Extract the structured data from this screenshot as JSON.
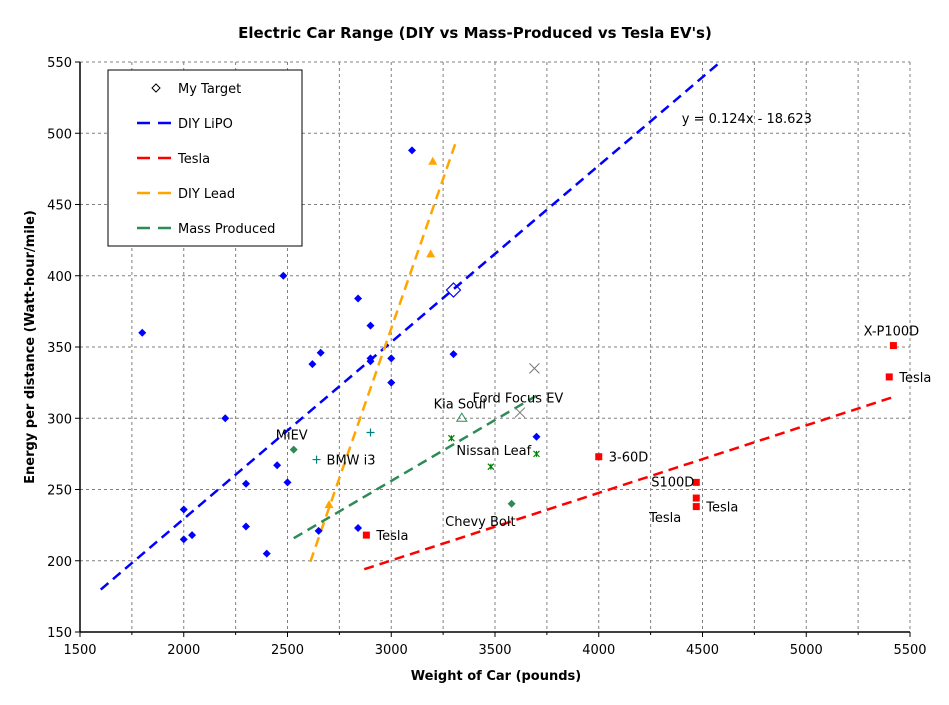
{
  "chart_data": {
    "type": "scatter",
    "title": "Electric Car Range (DIY vs Mass-Produced vs Tesla EV's)",
    "xlabel": "Weight of Car (pounds)",
    "ylabel": "Energy per distance (Watt-hour/mile)",
    "xlim": [
      1500,
      5500
    ],
    "ylim": [
      150,
      550
    ],
    "xticks": [
      1500,
      2000,
      2500,
      3000,
      3500,
      4000,
      4500,
      5000,
      5500
    ],
    "yticks": [
      150,
      200,
      250,
      300,
      350,
      400,
      450,
      500,
      550
    ],
    "grid": true,
    "legend": {
      "placement": "top-left",
      "entries": [
        {
          "label": "My Target",
          "symbol": "diamond-open",
          "color": "#000000"
        },
        {
          "label": "DIY LiPO",
          "symbol": "dashed-line",
          "color": "#0000ff"
        },
        {
          "label": "Tesla",
          "symbol": "dashed-line",
          "color": "#ff0000"
        },
        {
          "label": "DIY Lead",
          "symbol": "dashed-line",
          "color": "#ffa500"
        },
        {
          "label": "Mass Produced",
          "symbol": "dashed-line",
          "color": "#2e8b57"
        }
      ]
    },
    "series": [
      {
        "name": "DIY LiPO",
        "marker": "diamond",
        "color": "#0000ff",
        "points": [
          [
            1800,
            360
          ],
          [
            2200,
            300
          ],
          [
            2000,
            236
          ],
          [
            2000,
            215
          ],
          [
            2040,
            218
          ],
          [
            2300,
            224
          ],
          [
            2300,
            254
          ],
          [
            2400,
            205
          ],
          [
            2450,
            267
          ],
          [
            2500,
            255
          ],
          [
            2480,
            400
          ],
          [
            2620,
            338
          ],
          [
            2660,
            346
          ],
          [
            2650,
            221
          ],
          [
            2840,
            223
          ],
          [
            2840,
            384
          ],
          [
            2900,
            365
          ],
          [
            2900,
            340
          ],
          [
            2900,
            342
          ],
          [
            3000,
            342
          ],
          [
            3000,
            325
          ],
          [
            3100,
            488
          ],
          [
            3300,
            345
          ],
          [
            3700,
            287
          ]
        ]
      },
      {
        "name": "DIY Lead",
        "marker": "triangle",
        "color": "#ffa500",
        "points": [
          [
            3200,
            480
          ],
          [
            3190,
            415
          ],
          [
            2700,
            239
          ]
        ]
      },
      {
        "name": "My Target",
        "marker": "diamond-open",
        "color": "#0000ff",
        "points": [
          [
            3300,
            390
          ]
        ]
      },
      {
        "name": "Mass Produced",
        "marker": "mixed",
        "color": "#2e8b57",
        "points": [
          [
            2530,
            278,
            "diamond"
          ],
          [
            2640,
            271,
            "plus"
          ],
          [
            2900,
            290,
            "plus"
          ],
          [
            3340,
            300,
            "triangle-open"
          ],
          [
            3290,
            286,
            "star"
          ],
          [
            3480,
            266,
            "star"
          ],
          [
            3700,
            275,
            "star"
          ],
          [
            3580,
            240,
            "diamond"
          ],
          [
            3690,
            335,
            "x"
          ],
          [
            3620,
            304,
            "x"
          ]
        ]
      },
      {
        "name": "Tesla",
        "marker": "square",
        "color": "#ff0000",
        "points": [
          [
            2880,
            218
          ],
          [
            4000,
            273
          ],
          [
            4470,
            255
          ],
          [
            4470,
            244
          ],
          [
            4470,
            238
          ],
          [
            5420,
            351
          ],
          [
            5400,
            329
          ]
        ]
      }
    ],
    "trendlines": [
      {
        "name": "DIY LiPO",
        "color": "#0000ff",
        "slope": 0.124,
        "intercept": -18.623,
        "x": [
          1600,
          4590
        ]
      },
      {
        "name": "DIY Lead",
        "color": "#ffa500",
        "slope": 0.42,
        "intercept": -897,
        "x": [
          2610,
          3310
        ]
      },
      {
        "name": "Mass Produced",
        "color": "#2e8b57",
        "slope": 0.0855,
        "intercept": -0.5,
        "x": [
          2530,
          3700
        ]
      },
      {
        "name": "Tesla",
        "color": "#ff0000",
        "slope": 0.0474,
        "intercept": 58,
        "x": [
          2870,
          5420
        ]
      }
    ],
    "equation_label": {
      "text": "y = 0.124x - 18.623",
      "x": 4400,
      "y": 510
    },
    "annotations": [
      {
        "text": "MiEV",
        "x": 2530,
        "y": 278,
        "pos": "above"
      },
      {
        "text": "BMW i3",
        "x": 2640,
        "y": 271,
        "pos": "right"
      },
      {
        "text": "Kia Soul",
        "x": 3340,
        "y": 300,
        "pos": "above"
      },
      {
        "text": "Nissan Leaf",
        "x": 3290,
        "y": 286,
        "pos": "right-below"
      },
      {
        "text": "Ford Focus EV",
        "x": 3620,
        "y": 304,
        "pos": "above"
      },
      {
        "text": "Chevy Bolt",
        "x": 3580,
        "y": 240,
        "pos": "below-left"
      },
      {
        "text": "Tesla",
        "x": 2880,
        "y": 218,
        "pos": "right"
      },
      {
        "text": "3-60D",
        "x": 4000,
        "y": 273,
        "pos": "right"
      },
      {
        "text": "S100D",
        "x": 4470,
        "y": 255,
        "pos": "left"
      },
      {
        "text": "Tesla",
        "x": 4470,
        "y": 244,
        "pos": "left-below"
      },
      {
        "text": "Tesla",
        "x": 4470,
        "y": 238,
        "pos": "right"
      },
      {
        "text": "X-P100D",
        "x": 5420,
        "y": 351,
        "pos": "above"
      },
      {
        "text": "Tesla",
        "x": 5400,
        "y": 329,
        "pos": "right"
      }
    ]
  }
}
